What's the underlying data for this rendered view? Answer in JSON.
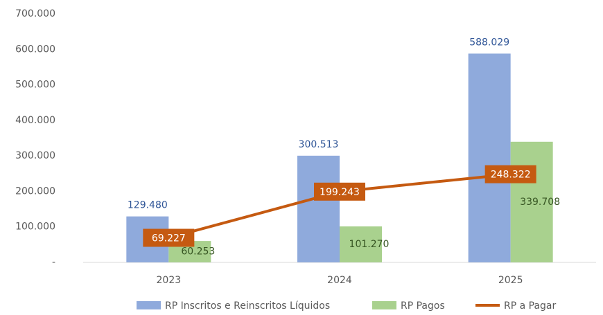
{
  "chart_data": {
    "type": "bar",
    "categories": [
      "2023",
      "2024",
      "2025"
    ],
    "series": [
      {
        "name": "RP Inscritos e Reinscritos Líquidos",
        "color": "#8faadc",
        "values": [
          129480,
          300513,
          588029
        ],
        "value_labels": [
          "129.480",
          "300.513",
          "588.029"
        ]
      },
      {
        "name": "RP Pagos",
        "color": "#a9d18e",
        "values": [
          60253,
          101270,
          339708
        ],
        "value_labels": [
          "60.253",
          "101.270",
          "339.708"
        ]
      },
      {
        "name": "RP a Pagar",
        "type": "line",
        "color": "#c55a11",
        "values": [
          69227,
          199243,
          248322
        ],
        "value_labels": [
          "69.227",
          "199.243",
          "248.322"
        ]
      }
    ],
    "ylim": [
      0,
      700000
    ],
    "yticks": [
      {
        "value": 0,
        "label": "-"
      },
      {
        "value": 100000,
        "label": "100.000"
      },
      {
        "value": 200000,
        "label": "200.000"
      },
      {
        "value": 300000,
        "label": "300.000"
      },
      {
        "value": 400000,
        "label": "400.000"
      },
      {
        "value": 500000,
        "label": "500.000"
      },
      {
        "value": 600000,
        "label": "600.000"
      },
      {
        "value": 700000,
        "label": "700.000"
      }
    ],
    "grid": false,
    "legend": "bottom"
  }
}
